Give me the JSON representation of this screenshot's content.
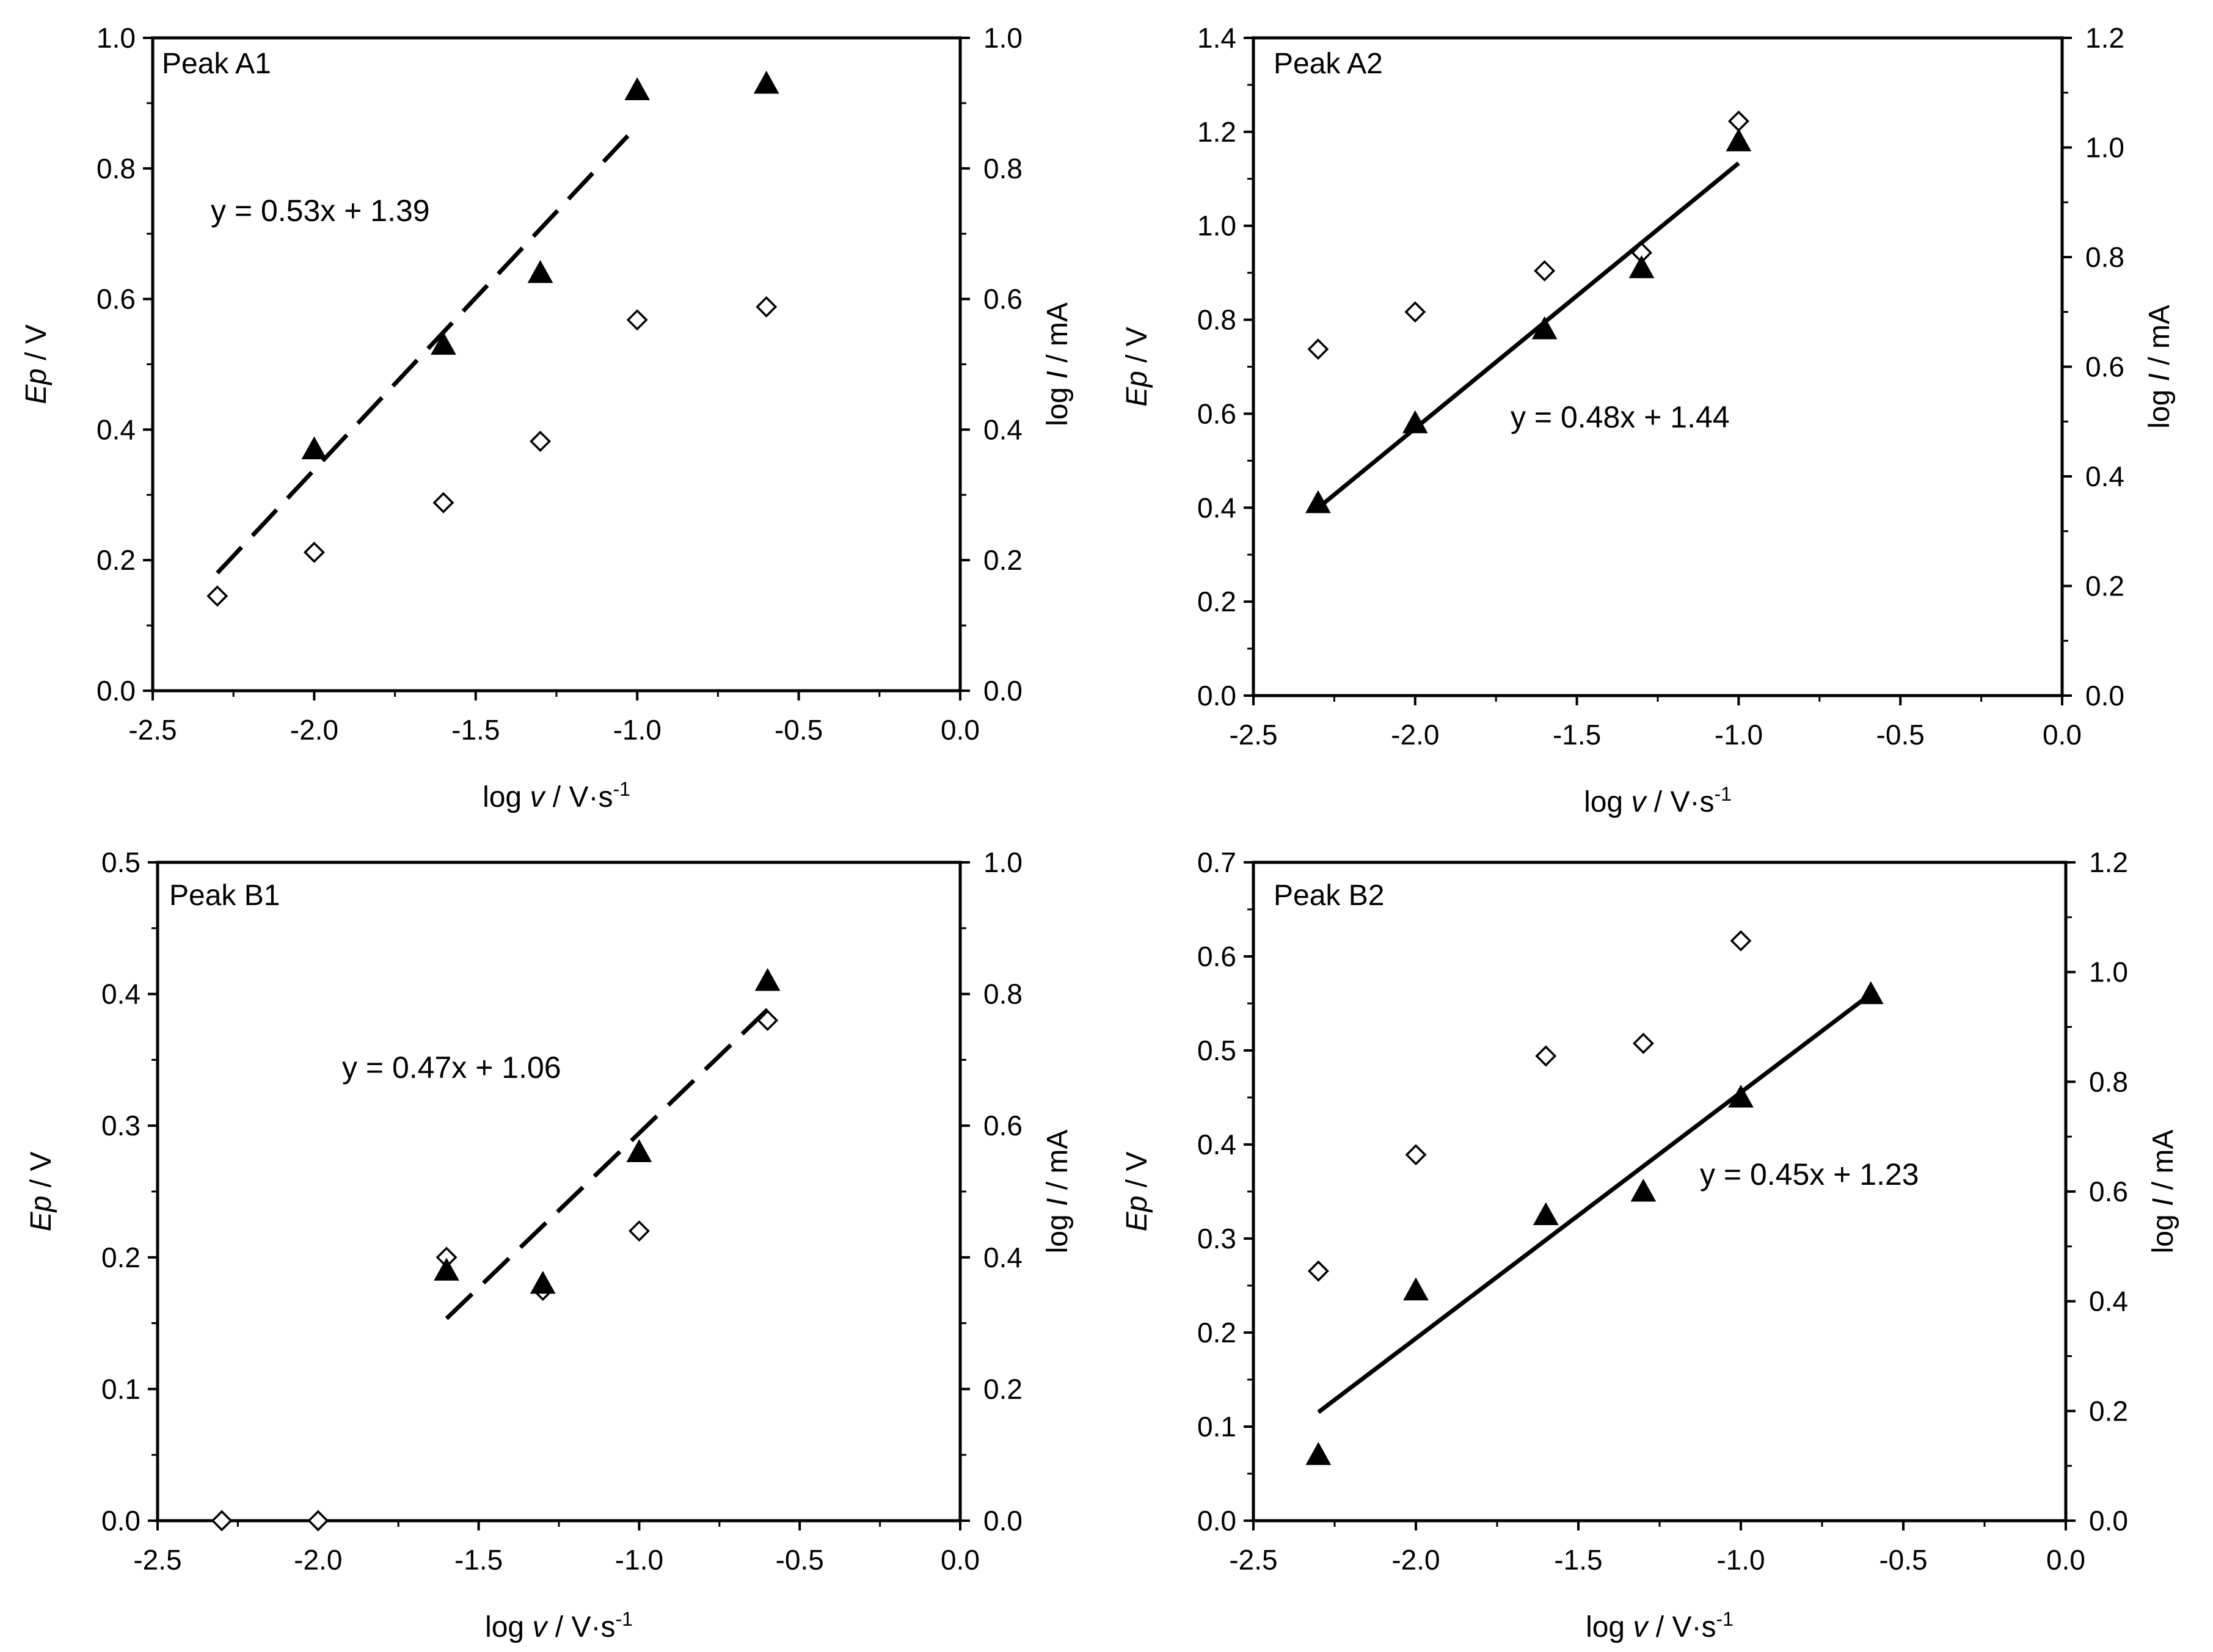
{
  "figure": {
    "x_label_prefix": "log ",
    "x_label_var": "v",
    "x_label_unit": " / V·s",
    "x_label_sup": "-1",
    "left_label_var": "Ep",
    "left_label_unit": " / V",
    "right_label_prefix": "log ",
    "right_label_var": "I",
    "right_label_unit": " / mA",
    "series": [
      {
        "name": "Ep",
        "marker": "filled-triangle",
        "axis": "left",
        "color": "#000000"
      },
      {
        "name": "log I",
        "marker": "open-diamond",
        "axis": "right",
        "color": "#000000"
      }
    ]
  },
  "chart_data": [
    {
      "type": "scatter",
      "title": "Peak A1",
      "equation": "y = 0.53x + 1.39",
      "xlim": [
        -2.5,
        0.0
      ],
      "ylim_left": [
        0.0,
        1.0
      ],
      "ylim_right": [
        0.0,
        1.0
      ],
      "xticks": [
        "-2.5",
        "-2.0",
        "-1.5",
        "-1.0",
        "-0.5",
        "0.0"
      ],
      "yticks_left": [
        "0.0",
        "0.2",
        "0.4",
        "0.6",
        "0.8",
        "1.0"
      ],
      "yticks_right": [
        "0.0",
        "0.2",
        "0.4",
        "0.6",
        "0.8",
        "1.0"
      ],
      "ep": {
        "x": [
          -2.0,
          -1.6,
          -1.3,
          -1.0,
          -0.6
        ],
        "y": [
          0.37,
          0.53,
          0.64,
          0.92,
          0.93
        ]
      },
      "logI": {
        "x": [
          -2.3,
          -2.0,
          -1.6,
          -1.3,
          -1.0,
          -0.6
        ],
        "y": [
          0.145,
          0.212,
          0.288,
          0.382,
          0.568,
          0.588
        ]
      },
      "fit": {
        "slope": 0.53,
        "intercept": 1.39,
        "x": [
          -2.3,
          -1.0
        ],
        "style": "dashed"
      }
    },
    {
      "type": "scatter",
      "title": "Peak A2",
      "equation": "y = 0.48x + 1.44",
      "xlim": [
        -2.5,
        0.0
      ],
      "ylim_left": [
        0.0,
        1.4
      ],
      "ylim_right": [
        0.0,
        1.2
      ],
      "xticks": [
        "-2.5",
        "-2.0",
        "-1.5",
        "-1.0",
        "-0.5",
        "0.0"
      ],
      "yticks_left": [
        "0.0",
        "0.2",
        "0.4",
        "0.6",
        "0.8",
        "1.0",
        "1.2",
        "1.4"
      ],
      "yticks_right": [
        "0.0",
        "0.2",
        "0.4",
        "0.6",
        "0.8",
        "1.0",
        "1.2"
      ],
      "ep": {
        "x": [
          -2.3,
          -2.0,
          -1.6,
          -1.3,
          -1.0
        ],
        "y": [
          0.41,
          0.58,
          0.78,
          0.91,
          1.18
        ]
      },
      "logI": {
        "x": [
          -2.3,
          -2.0,
          -1.6,
          -1.3,
          -1.0
        ],
        "y": [
          0.632,
          0.7,
          0.775,
          0.808,
          1.048
        ]
      },
      "fit": {
        "slope": 0.48,
        "intercept": 1.44,
        "x": [
          -2.3,
          -1.0
        ],
        "style": "solid"
      }
    },
    {
      "type": "scatter",
      "title": "Peak B1",
      "equation": "y = 0.47x + 1.06",
      "xlim": [
        -2.5,
        0.0
      ],
      "ylim_left": [
        0.0,
        0.5
      ],
      "ylim_right": [
        0.0,
        1.0
      ],
      "xticks": [
        "-2.5",
        "-2.0",
        "-1.5",
        "-1.0",
        "-0.5",
        "0.0"
      ],
      "yticks_left": [
        "0.0",
        "0.1",
        "0.2",
        "0.3",
        "0.4",
        "0.5"
      ],
      "yticks_right": [
        "0.0",
        "0.2",
        "0.4",
        "0.6",
        "0.8",
        "1.0"
      ],
      "ep": {
        "x": [
          -1.6,
          -1.3,
          -1.0,
          -0.6
        ],
        "y": [
          0.19,
          0.18,
          0.28,
          0.41
        ]
      },
      "logI": {
        "x": [
          -2.3,
          -2.0,
          -1.6,
          -1.3,
          -1.0,
          -0.6
        ],
        "y": [
          0.0,
          0.0,
          0.4,
          0.35,
          0.44,
          0.76
        ]
      },
      "fit": {
        "slope": 0.47,
        "intercept": 1.06,
        "x": [
          -1.6,
          -0.6
        ],
        "style": "dashed"
      }
    },
    {
      "type": "scatter",
      "title": "Peak B2",
      "equation": "y = 0.45x + 1.23",
      "xlim": [
        -2.5,
        0.0
      ],
      "ylim_left": [
        0.0,
        0.7
      ],
      "ylim_right": [
        0.0,
        1.2
      ],
      "xticks": [
        "-2.5",
        "-2.0",
        "-1.5",
        "-1.0",
        "-0.5",
        "0.0"
      ],
      "yticks_left": [
        "0.0",
        "0.1",
        "0.2",
        "0.3",
        "0.4",
        "0.5",
        "0.6",
        "0.7"
      ],
      "yticks_right": [
        "0.0",
        "0.2",
        "0.4",
        "0.6",
        "0.8",
        "1.0",
        "1.2"
      ],
      "ep": {
        "x": [
          -2.3,
          -2.0,
          -1.6,
          -1.3,
          -1.0,
          -0.6
        ],
        "y": [
          0.07,
          0.245,
          0.325,
          0.35,
          0.45,
          0.56
        ]
      },
      "logI": {
        "x": [
          -2.3,
          -2.0,
          -1.6,
          -1.3,
          -1.0
        ],
        "y": [
          0.455,
          0.667,
          0.847,
          0.87,
          1.057
        ]
      },
      "fit": {
        "slope": 0.45,
        "intercept": 1.23,
        "x": [
          -2.3,
          -0.6
        ],
        "style": "solid"
      }
    }
  ]
}
